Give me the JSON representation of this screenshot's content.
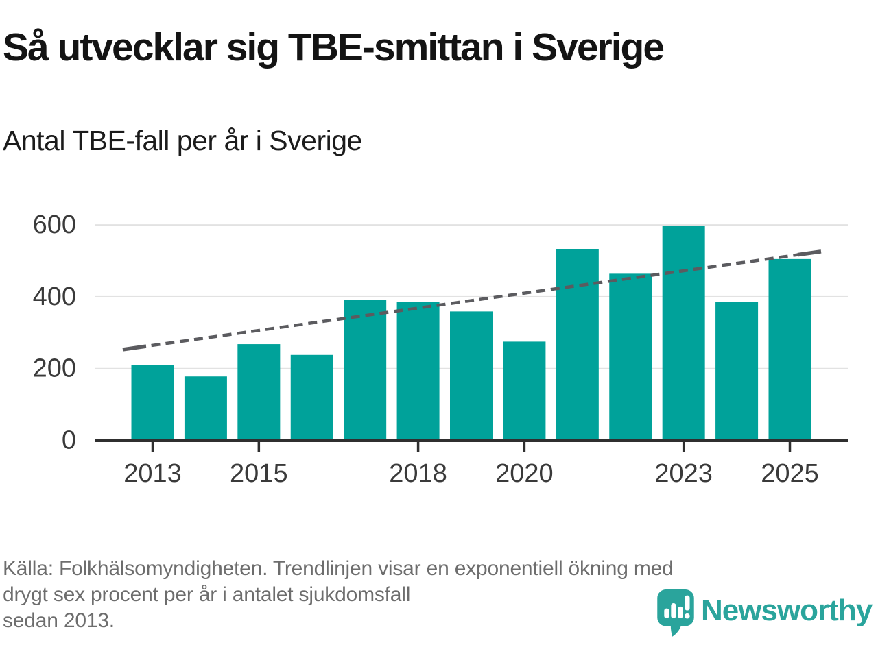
{
  "header": {
    "title": "Så utvecklar sig TBE-smittan i Sverige",
    "subtitle": "Antal TBE-fall per år i Sverige"
  },
  "chart_data": {
    "type": "bar",
    "title": "Antal TBE-fall per år i Sverige",
    "categories": [
      "2013",
      "2014",
      "2015",
      "2016",
      "2017",
      "2018",
      "2019",
      "2020",
      "2021",
      "2022",
      "2023",
      "2024",
      "2025"
    ],
    "values": [
      209,
      178,
      268,
      238,
      391,
      385,
      359,
      275,
      533,
      464,
      598,
      386,
      505
    ],
    "xlabel": "",
    "ylabel": "",
    "ylim": [
      0,
      620
    ],
    "y_ticks": [
      0,
      200,
      400,
      600
    ],
    "x_tick_labels": [
      "2013",
      "2015",
      "2018",
      "2020",
      "2023",
      "2025"
    ],
    "grid": "horizontal",
    "legend_position": "none",
    "bar_color": "#00a29a",
    "trendline": {
      "shape": "exponential",
      "style": "dashed-with-solid-end-caps",
      "color": "#5b5b5f",
      "start_category": "2013",
      "end_category": "2025",
      "start_value": 253,
      "end_value": 526,
      "annual_growth_pct": 6
    }
  },
  "footer": {
    "source_line1": "Källa: Folkhälsomyndigheten. Trendlinjen visar en exponentiell ökning med",
    "source_line2": "drygt sex procent per år i antalet sjukdomsfall",
    "source_line3": "sedan 2013.",
    "logo_icon": "speech-bubble-bar-chart-icon",
    "logo_text": "Newsworthy",
    "logo_color": "#2aa49c"
  },
  "colors": {
    "background": "#ffffff",
    "title_text": "#141414",
    "axis_text": "#3a3a3a",
    "grid_line": "#e2e2e2",
    "axis_line": "#2f2f2f",
    "footer_text": "#6d6d6d"
  }
}
